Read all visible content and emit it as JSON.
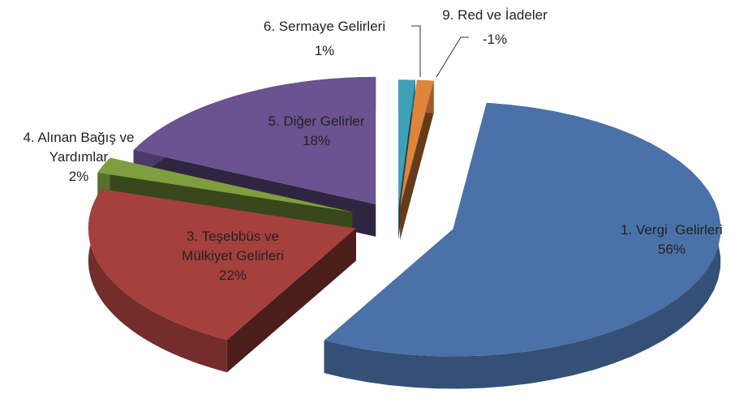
{
  "chart_data": {
    "type": "pie",
    "categories": [
      "1. Vergi  Gelirleri",
      "3. Teşebbüs ve Mülkiyet Gelirleri",
      "4. Alınan Bağış ve Yardımlar",
      "5. Diğer Gelirler",
      "6. Sermaye Gelirleri",
      "9. Red ve İadeler"
    ],
    "values": [
      56,
      22,
      2,
      18,
      1,
      -1
    ],
    "value_labels": [
      "56%",
      "22%",
      "2%",
      "18%",
      "1%",
      "-1%"
    ],
    "colors": [
      "#4a72a8",
      "#a6403d",
      "#7f9e3f",
      "#6a5390",
      "#3fa1b8",
      "#e0843a"
    ]
  }
}
